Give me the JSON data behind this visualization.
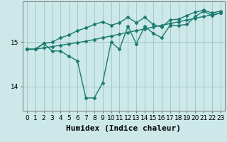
{
  "xlabel": "Humidex (Indice chaleur)",
  "background_color": "#cce8e8",
  "line_color": "#1a7a6e",
  "grid_color": "#99bbbb",
  "x": [
    0,
    1,
    2,
    3,
    4,
    5,
    6,
    7,
    8,
    9,
    10,
    11,
    12,
    13,
    14,
    15,
    16,
    17,
    18,
    19,
    20,
    21,
    22,
    23
  ],
  "line1": [
    14.84,
    14.84,
    14.87,
    14.9,
    14.93,
    14.96,
    14.99,
    15.02,
    15.06,
    15.1,
    15.14,
    15.18,
    15.22,
    15.26,
    15.3,
    15.34,
    15.38,
    15.42,
    15.46,
    15.5,
    15.54,
    15.58,
    15.62,
    15.66
  ],
  "line2": [
    14.84,
    14.84,
    14.97,
    15.0,
    15.1,
    15.16,
    15.26,
    15.32,
    15.4,
    15.46,
    15.38,
    15.44,
    15.56,
    15.44,
    15.56,
    15.4,
    15.34,
    15.5,
    15.52,
    15.6,
    15.68,
    15.72,
    15.66,
    15.7
  ],
  "line3": [
    14.84,
    14.84,
    14.97,
    14.8,
    14.8,
    14.68,
    14.58,
    13.74,
    13.74,
    14.08,
    15.0,
    14.84,
    15.36,
    14.96,
    15.36,
    15.2,
    15.1,
    15.38,
    15.38,
    15.4,
    15.58,
    15.7,
    15.6,
    15.66
  ],
  "yticks": [
    14,
    15
  ],
  "ylim": [
    13.45,
    15.92
  ],
  "xlim": [
    -0.5,
    23.5
  ],
  "xticks": [
    0,
    1,
    2,
    3,
    4,
    5,
    6,
    7,
    8,
    9,
    10,
    11,
    12,
    13,
    14,
    15,
    16,
    17,
    18,
    19,
    20,
    21,
    22,
    23
  ],
  "marker": "D",
  "marker_size": 2.5,
  "linewidth": 1.0,
  "xlabel_fontsize": 8,
  "tick_fontsize": 6.5
}
